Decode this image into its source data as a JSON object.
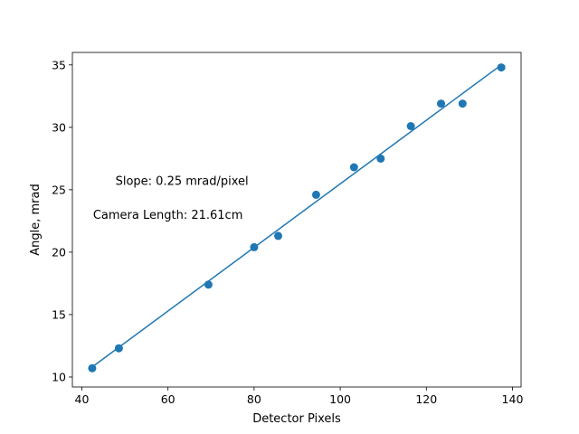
{
  "chart_data": {
    "type": "scatter",
    "title": "",
    "xlabel": "Detector Pixels",
    "ylabel": "Angle, mrad",
    "xlim": [
      37.8,
      142.0
    ],
    "ylim": [
      9.2,
      36.0
    ],
    "xticks": [
      40,
      60,
      80,
      100,
      120,
      140
    ],
    "yticks": [
      10,
      15,
      20,
      25,
      30,
      35
    ],
    "grid": false,
    "series": [
      {
        "kind": "scatter",
        "color": "#1f77b4",
        "x": [
          42.4,
          48.6,
          69.4,
          80.0,
          85.6,
          94.4,
          103.2,
          109.4,
          116.4,
          123.4,
          128.4,
          137.4
        ],
        "y": [
          10.7,
          12.3,
          17.4,
          20.4,
          21.3,
          24.6,
          26.8,
          27.5,
          30.1,
          31.9,
          31.9,
          34.8
        ]
      },
      {
        "kind": "line",
        "color": "#1f77b4",
        "x": [
          42.4,
          137.4
        ],
        "y": [
          10.8,
          35.0
        ]
      }
    ],
    "annotations": [
      {
        "text": "Slope: 0.25 mrad/pixel",
        "x": 47.8,
        "y": 25.7
      },
      {
        "text": "Camera Length: 21.61cm",
        "x": 42.6,
        "y": 23.0
      }
    ]
  }
}
